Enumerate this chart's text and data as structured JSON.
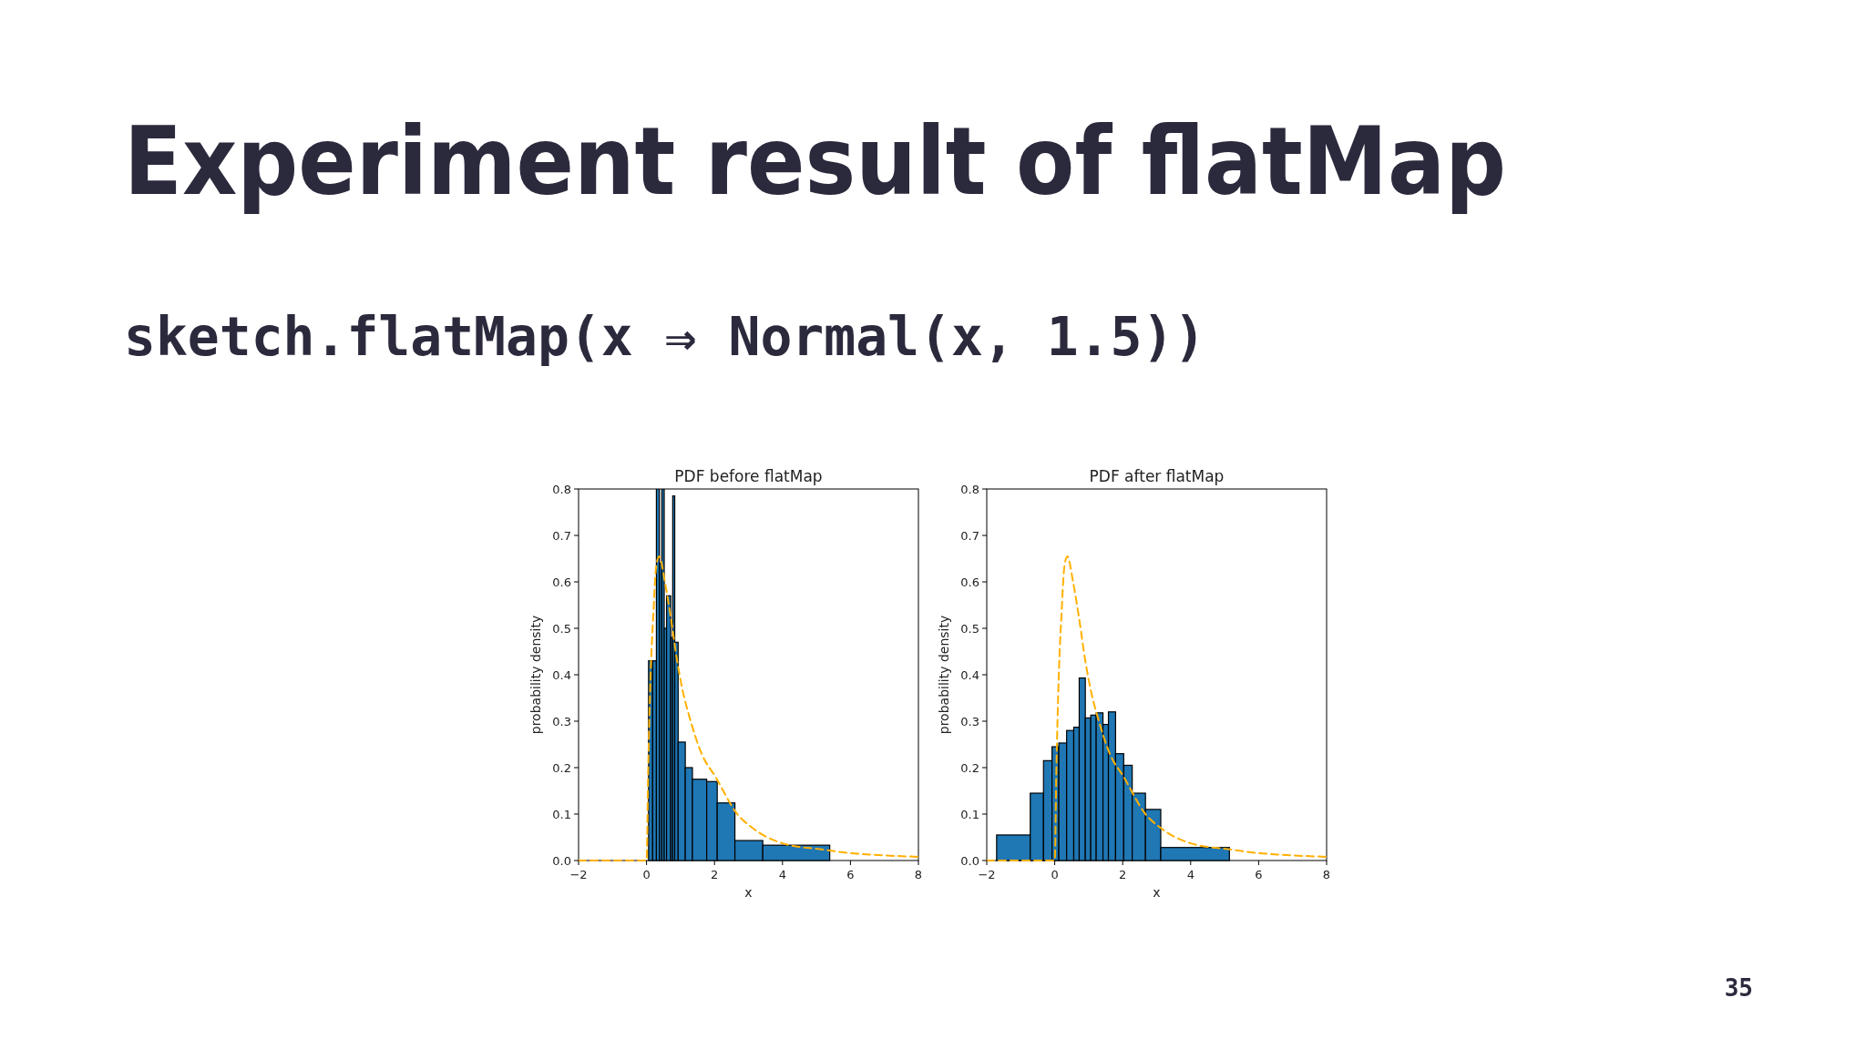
{
  "chart_data": [
    {
      "type": "other",
      "title": "Experiment result of flatMap",
      "subtitle": "sketch.flatMap(x ⇒ Normal(x, 1.5))",
      "annotations": [
        "35"
      ]
    },
    {
      "type": "histogram",
      "title": "PDF before flatMap",
      "xlabel": "x",
      "ylabel": "probability density",
      "xlim": [
        -2,
        8
      ],
      "ylim": [
        0,
        0.8
      ],
      "xticks": [
        {
          "value": -2,
          "label": "−2"
        },
        0,
        2,
        4,
        6,
        8
      ],
      "yticks": [
        {
          "value": 0,
          "label": "0.0"
        },
        {
          "value": 0.1,
          "label": "0.1"
        },
        {
          "value": 0.2,
          "label": "0.2"
        },
        {
          "value": 0.3,
          "label": "0.3"
        },
        {
          "value": 0.4,
          "label": "0.4"
        },
        {
          "value": 0.5,
          "label": "0.5"
        },
        {
          "value": 0.6,
          "label": "0.6"
        },
        {
          "value": 0.7,
          "label": "0.7"
        },
        {
          "value": 0.8,
          "label": "0.8"
        }
      ],
      "grid": false,
      "series": [
        {
          "type": "histogram",
          "color": "#1f77b4",
          "bins": [
            0.06,
            0.18,
            0.29,
            0.38,
            0.45,
            0.52,
            0.59,
            0.71,
            0.77,
            0.83,
            0.93,
            1.14,
            1.35,
            1.77,
            2.08,
            2.6,
            3.42,
            5.39
          ],
          "values": [
            0.43,
            0.43,
            0.8,
            0.64,
            0.8,
            0.5,
            0.57,
            0.48,
            0.785,
            0.47,
            0.255,
            0.2,
            0.175,
            0.17,
            0.124,
            0.043,
            0.033
          ]
        },
        {
          "type": "line",
          "color": "#ffb000",
          "line_style": "dashed",
          "x": [
            -2,
            0,
            0.05,
            0.12,
            0.2,
            0.28,
            0.37,
            0.54,
            0.72,
            0.9,
            1.08,
            1.26,
            1.62,
            2.03,
            2.67,
            3.12,
            4,
            5.14,
            6,
            7,
            8
          ],
          "values": [
            0,
            0,
            0.2,
            0.4,
            0.53,
            0.63,
            0.655,
            0.6,
            0.52,
            0.43,
            0.36,
            0.31,
            0.23,
            0.18,
            0.1,
            0.07,
            0.037,
            0.024,
            0.016,
            0.011,
            0.008
          ]
        }
      ]
    },
    {
      "type": "histogram",
      "title": "PDF after flatMap",
      "xlabel": "x",
      "ylabel": "probability density",
      "xlim": [
        -2,
        8
      ],
      "ylim": [
        0,
        0.8
      ],
      "xticks": [
        {
          "value": -2,
          "label": "−2"
        },
        0,
        2,
        4,
        6,
        8
      ],
      "yticks": [
        {
          "value": 0,
          "label": "0.0"
        },
        {
          "value": 0.1,
          "label": "0.1"
        },
        {
          "value": 0.2,
          "label": "0.2"
        },
        {
          "value": 0.3,
          "label": "0.3"
        },
        {
          "value": 0.4,
          "label": "0.4"
        },
        {
          "value": 0.5,
          "label": "0.5"
        },
        {
          "value": 0.6,
          "label": "0.6"
        },
        {
          "value": 0.7,
          "label": "0.7"
        },
        {
          "value": 0.8,
          "label": "0.8"
        }
      ],
      "grid": false,
      "series": [
        {
          "type": "histogram",
          "color": "#1f77b4",
          "bins": [
            -1.71,
            -0.72,
            -0.33,
            -0.08,
            0.12,
            0.35,
            0.56,
            0.72,
            0.9,
            1.06,
            1.22,
            1.42,
            1.58,
            1.79,
            2.03,
            2.28,
            2.67,
            3.12,
            5.14
          ],
          "values": [
            0.055,
            0.145,
            0.215,
            0.245,
            0.253,
            0.28,
            0.287,
            0.393,
            0.307,
            0.313,
            0.318,
            0.293,
            0.32,
            0.23,
            0.205,
            0.145,
            0.11,
            0.028
          ]
        },
        {
          "type": "line",
          "color": "#ffb000",
          "line_style": "dashed",
          "x": [
            -2,
            0,
            0.05,
            0.12,
            0.2,
            0.28,
            0.37,
            0.54,
            0.72,
            0.9,
            1.08,
            1.26,
            1.62,
            2.03,
            2.67,
            3.12,
            4,
            5.14,
            6,
            7,
            8
          ],
          "values": [
            0,
            0,
            0.2,
            0.4,
            0.53,
            0.63,
            0.655,
            0.6,
            0.52,
            0.43,
            0.36,
            0.31,
            0.23,
            0.18,
            0.1,
            0.07,
            0.037,
            0.024,
            0.016,
            0.011,
            0.008
          ]
        }
      ]
    }
  ]
}
